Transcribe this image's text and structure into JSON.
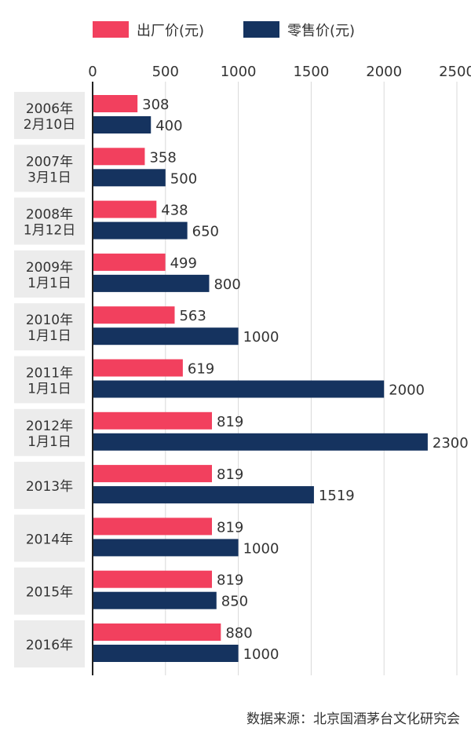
{
  "chart_data": {
    "type": "bar",
    "orientation": "horizontal",
    "title": "",
    "xlabel": "",
    "ylabel": "",
    "xlim": [
      0,
      2500
    ],
    "ticks": [
      0,
      500,
      1000,
      1500,
      2000,
      2500
    ],
    "grid": true,
    "legend_position": "top",
    "categories": [
      [
        "2006年",
        "2月10日"
      ],
      [
        "2007年",
        "3月1日"
      ],
      [
        "2008年",
        "1月12日"
      ],
      [
        "2009年",
        "1月1日"
      ],
      [
        "2010年",
        "1月1日"
      ],
      [
        "2011年",
        "1月1日"
      ],
      [
        "2012年",
        "1月1日"
      ],
      [
        "2013年"
      ],
      [
        "2014年"
      ],
      [
        "2015年"
      ],
      [
        "2016年"
      ]
    ],
    "series": [
      {
        "name": "出厂价(元)",
        "color": "#f2405e",
        "values": [
          308,
          358,
          438,
          499,
          563,
          619,
          819,
          819,
          819,
          819,
          880
        ]
      },
      {
        "name": "零售价(元)",
        "color": "#15335f",
        "values": [
          400,
          500,
          650,
          800,
          1000,
          2000,
          2300,
          1519,
          1000,
          850,
          1000
        ]
      }
    ]
  },
  "source_note": "数据来源：北京国酒茅台文化研究会"
}
